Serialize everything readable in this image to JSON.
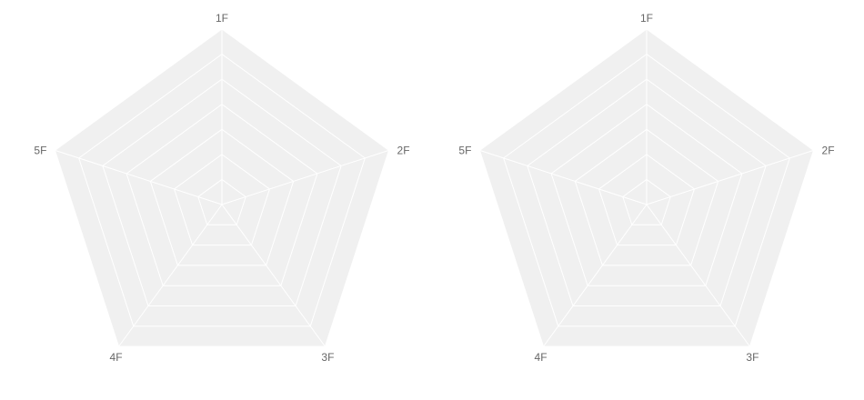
{
  "colors": {
    "background": "#ffffff",
    "area_fill": "#f0f0f0",
    "grid_line": "#ffffff",
    "label_text": "#666666"
  },
  "chart_data": [
    {
      "type": "radar",
      "axes": [
        "1F",
        "2F",
        "3F",
        "4F",
        "5F"
      ],
      "rings": 7,
      "series": [],
      "title": "",
      "legend": "none"
    },
    {
      "type": "radar",
      "axes": [
        "1F",
        "2F",
        "3F",
        "4F",
        "5F"
      ],
      "rings": 7,
      "series": [],
      "title": "",
      "legend": "none"
    }
  ]
}
